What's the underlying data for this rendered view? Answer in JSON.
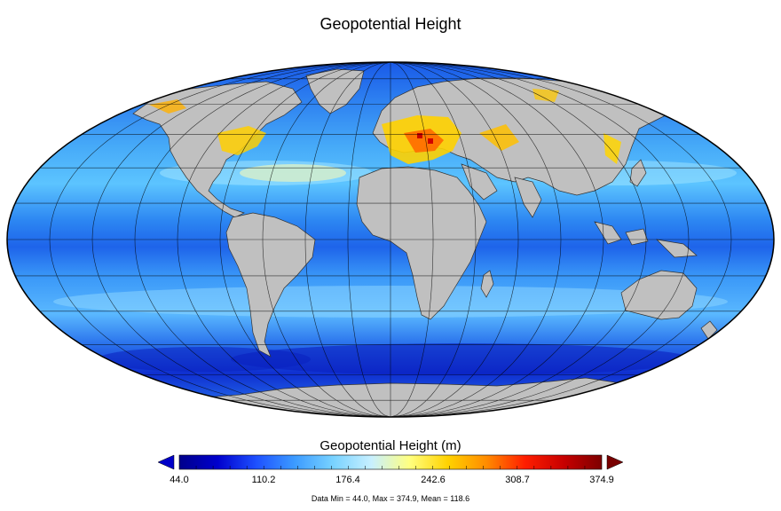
{
  "figure": {
    "title": "Geopotential Height",
    "projection": "mollweide"
  },
  "colorbar": {
    "label": "Geopotential Height (m)",
    "ticks": [
      "44.0",
      "110.2",
      "176.4",
      "242.6",
      "308.7",
      "374.9"
    ],
    "min": 44.0,
    "max": 374.9,
    "extend": "both",
    "colors": [
      "#00008b",
      "#0000cd",
      "#1e50ff",
      "#3c9bff",
      "#78d2ff",
      "#c8f0ff",
      "#ffff80",
      "#ffd200",
      "#ff8c00",
      "#ff1e00",
      "#c80000",
      "#7d0000"
    ],
    "under_color": "#0000c8",
    "over_color": "#780000"
  },
  "stats": {
    "text": "Data Min = 44.0, Max = 374.9, Mean = 118.6"
  },
  "map_style": {
    "land_color": "#c0c0c0",
    "ocean_base": "#3c9bff",
    "grid_color": "#000000"
  }
}
